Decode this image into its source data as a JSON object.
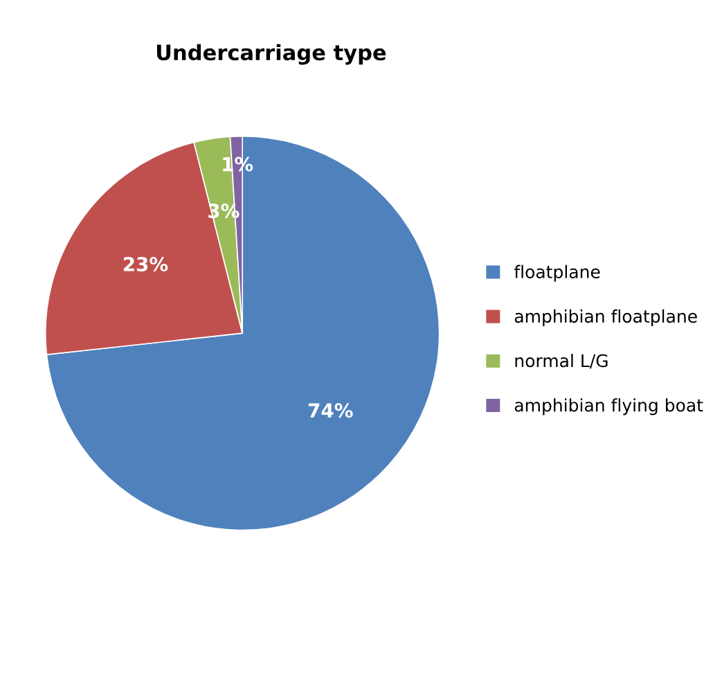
{
  "chart_data": {
    "type": "pie",
    "title": "Undercarriage type",
    "categories": [
      "floatplane",
      "amphibian floatplane",
      "normal L/G",
      "amphibian flying boat"
    ],
    "values": [
      74,
      23,
      3,
      1
    ],
    "colors": [
      "#4f81bd",
      "#c0504d",
      "#9bbb59",
      "#8064a2"
    ],
    "value_labels": [
      "74%",
      "23%",
      "3%",
      "1%"
    ],
    "legend": "right"
  }
}
